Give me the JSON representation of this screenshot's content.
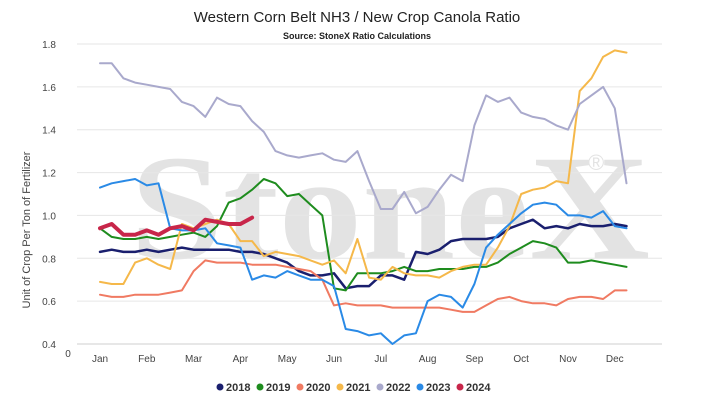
{
  "chart_data": {
    "type": "line",
    "title": "Western Corn Belt NH3 / New Crop Canola Ratio",
    "subtitle": "Source: StoneX Ratio Calculations",
    "ylabel": "Unit of Crop Per Ton of Fertilizer",
    "xlabel": "",
    "x_origin_label": "0",
    "categories": [
      "Jan",
      "Feb",
      "Mar",
      "Apr",
      "May",
      "Jun",
      "Jul",
      "Aug",
      "Sep",
      "Oct",
      "Nov",
      "Dec"
    ],
    "ylim": [
      0.4,
      1.8
    ],
    "yticks": [
      "0.4",
      "0.6",
      "0.8",
      "1.0",
      "1.2",
      "1.4",
      "1.6",
      "1.8"
    ],
    "grid": true,
    "legend_position": "bottom",
    "watermark": "StoneX",
    "series": [
      {
        "name": "2018",
        "color": "#1a1f6e",
        "width": 2.5,
        "x": [
          0,
          0.25,
          0.5,
          0.75,
          1,
          1.25,
          1.5,
          1.75,
          2,
          2.25,
          2.5,
          2.75,
          3,
          3.25,
          3.5,
          3.75,
          4,
          4.25,
          4.5,
          4.75,
          5,
          5.25,
          5.5,
          5.75,
          6,
          6.25,
          6.5,
          6.75,
          7,
          7.25,
          7.5,
          7.75,
          8,
          8.25,
          8.5,
          8.75,
          9,
          9.25,
          9.5,
          9.75,
          10,
          10.25,
          10.5,
          10.75,
          11,
          11.25
        ],
        "y": [
          0.83,
          0.84,
          0.83,
          0.83,
          0.84,
          0.83,
          0.84,
          0.85,
          0.84,
          0.84,
          0.84,
          0.84,
          0.83,
          0.83,
          0.82,
          0.8,
          0.78,
          0.74,
          0.72,
          0.72,
          0.73,
          0.66,
          0.67,
          0.67,
          0.72,
          0.72,
          0.7,
          0.83,
          0.82,
          0.84,
          0.88,
          0.89,
          0.89,
          0.89,
          0.9,
          0.94,
          0.96,
          0.98,
          0.94,
          0.95,
          0.94,
          0.96,
          0.95,
          0.95,
          0.96,
          0.95
        ]
      },
      {
        "name": "2019",
        "color": "#1e8c1e",
        "width": 2,
        "x": [
          0,
          0.25,
          0.5,
          0.75,
          1,
          1.25,
          1.5,
          1.75,
          2,
          2.25,
          2.5,
          2.75,
          3,
          3.25,
          3.5,
          3.75,
          4,
          4.25,
          4.5,
          4.75,
          5,
          5.25,
          5.5,
          5.75,
          6,
          6.25,
          6.5,
          6.75,
          7,
          7.25,
          7.5,
          7.75,
          8,
          8.25,
          8.5,
          8.75,
          9,
          9.25,
          9.5,
          9.75,
          10,
          10.25,
          10.5,
          10.75,
          11,
          11.25
        ],
        "y": [
          0.94,
          0.9,
          0.89,
          0.89,
          0.9,
          0.89,
          0.9,
          0.91,
          0.92,
          0.9,
          0.95,
          1.06,
          1.08,
          1.12,
          1.17,
          1.15,
          1.09,
          1.1,
          1.05,
          1.0,
          0.66,
          0.65,
          0.73,
          0.73,
          0.73,
          0.74,
          0.76,
          0.74,
          0.74,
          0.75,
          0.75,
          0.75,
          0.76,
          0.76,
          0.78,
          0.82,
          0.85,
          0.88,
          0.87,
          0.85,
          0.78,
          0.78,
          0.79,
          0.78,
          0.77,
          0.76
        ]
      },
      {
        "name": "2020",
        "color": "#f07a62",
        "width": 2,
        "x": [
          0,
          0.25,
          0.5,
          0.75,
          1,
          1.25,
          1.5,
          1.75,
          2,
          2.25,
          2.5,
          2.75,
          3,
          3.25,
          3.5,
          3.75,
          4,
          4.25,
          4.5,
          4.75,
          5,
          5.25,
          5.5,
          5.75,
          6,
          6.25,
          6.5,
          6.75,
          7,
          7.25,
          7.5,
          7.75,
          8,
          8.25,
          8.5,
          8.75,
          9,
          9.25,
          9.5,
          9.75,
          10,
          10.25,
          10.5,
          10.75,
          11,
          11.25
        ],
        "y": [
          0.63,
          0.62,
          0.62,
          0.63,
          0.63,
          0.63,
          0.64,
          0.65,
          0.74,
          0.79,
          0.78,
          0.78,
          0.78,
          0.77,
          0.77,
          0.77,
          0.76,
          0.75,
          0.74,
          0.7,
          0.58,
          0.59,
          0.58,
          0.58,
          0.58,
          0.57,
          0.57,
          0.57,
          0.57,
          0.57,
          0.56,
          0.55,
          0.55,
          0.58,
          0.61,
          0.62,
          0.6,
          0.59,
          0.59,
          0.58,
          0.61,
          0.62,
          0.62,
          0.61,
          0.65,
          0.65
        ]
      },
      {
        "name": "2021",
        "color": "#f5b84a",
        "width": 2,
        "x": [
          0,
          0.25,
          0.5,
          0.75,
          1,
          1.25,
          1.5,
          1.75,
          2,
          2.25,
          2.5,
          2.75,
          3,
          3.25,
          3.5,
          3.75,
          4,
          4.25,
          4.5,
          4.75,
          5,
          5.25,
          5.5,
          5.75,
          6,
          6.25,
          6.5,
          6.75,
          7,
          7.25,
          7.5,
          7.75,
          8,
          8.25,
          8.5,
          8.75,
          9,
          9.25,
          9.5,
          9.75,
          10,
          10.25,
          10.5,
          10.75,
          11,
          11.25
        ],
        "y": [
          0.69,
          0.68,
          0.68,
          0.78,
          0.8,
          0.77,
          0.75,
          0.96,
          0.94,
          0.96,
          0.98,
          0.96,
          0.88,
          0.88,
          0.81,
          0.83,
          0.82,
          0.81,
          0.79,
          0.77,
          0.79,
          0.73,
          0.89,
          0.71,
          0.7,
          0.76,
          0.73,
          0.72,
          0.72,
          0.71,
          0.74,
          0.76,
          0.77,
          0.77,
          0.85,
          0.95,
          1.1,
          1.12,
          1.13,
          1.16,
          1.15,
          1.58,
          1.64,
          1.74,
          1.77,
          1.76
        ]
      },
      {
        "name": "2022",
        "color": "#a9a9cc",
        "width": 2,
        "x": [
          0,
          0.25,
          0.5,
          0.75,
          1,
          1.25,
          1.5,
          1.75,
          2,
          2.25,
          2.5,
          2.75,
          3,
          3.25,
          3.5,
          3.75,
          4,
          4.25,
          4.5,
          4.75,
          5,
          5.25,
          5.5,
          5.75,
          6,
          6.25,
          6.5,
          6.75,
          7,
          7.25,
          7.5,
          7.75,
          8,
          8.25,
          8.5,
          8.75,
          9,
          9.25,
          9.5,
          9.75,
          10,
          10.25,
          10.5,
          10.75,
          11,
          11.25
        ],
        "y": [
          1.71,
          1.71,
          1.64,
          1.62,
          1.61,
          1.6,
          1.59,
          1.53,
          1.51,
          1.46,
          1.55,
          1.52,
          1.51,
          1.44,
          1.39,
          1.3,
          1.28,
          1.27,
          1.28,
          1.29,
          1.26,
          1.25,
          1.3,
          1.16,
          1.03,
          1.03,
          1.11,
          1.01,
          1.04,
          1.12,
          1.19,
          1.16,
          1.42,
          1.56,
          1.53,
          1.55,
          1.48,
          1.46,
          1.45,
          1.42,
          1.4,
          1.52,
          1.56,
          1.6,
          1.5,
          1.15
        ]
      },
      {
        "name": "2023",
        "color": "#2a8ae6",
        "width": 2,
        "x": [
          0,
          0.25,
          0.5,
          0.75,
          1,
          1.25,
          1.5,
          1.75,
          2,
          2.25,
          2.5,
          2.75,
          3,
          3.25,
          3.5,
          3.75,
          4,
          4.25,
          4.5,
          4.75,
          5,
          5.25,
          5.5,
          5.75,
          6,
          6.25,
          6.5,
          6.75,
          7,
          7.25,
          7.5,
          7.75,
          8,
          8.25,
          8.5,
          8.75,
          9,
          9.25,
          9.5,
          9.75,
          10,
          10.25,
          10.5,
          10.75,
          11,
          11.25
        ],
        "y": [
          1.13,
          1.15,
          1.16,
          1.17,
          1.14,
          1.15,
          0.94,
          0.93,
          0.93,
          0.94,
          0.87,
          0.86,
          0.85,
          0.7,
          0.72,
          0.71,
          0.74,
          0.72,
          0.7,
          0.7,
          0.67,
          0.47,
          0.46,
          0.44,
          0.45,
          0.4,
          0.44,
          0.45,
          0.6,
          0.63,
          0.62,
          0.57,
          0.68,
          0.85,
          0.91,
          0.96,
          1.01,
          1.05,
          1.06,
          1.05,
          1.0,
          1.0,
          0.99,
          1.02,
          0.95,
          0.94
        ]
      },
      {
        "name": "2024",
        "color": "#c8264a",
        "width": 4,
        "x": [
          0,
          0.25,
          0.5,
          0.75,
          1,
          1.25,
          1.5,
          1.75,
          2,
          2.25,
          2.5,
          2.75,
          3,
          3.25
        ],
        "y": [
          0.94,
          0.96,
          0.91,
          0.91,
          0.93,
          0.91,
          0.94,
          0.95,
          0.93,
          0.98,
          0.97,
          0.96,
          0.96,
          0.99
        ]
      }
    ]
  }
}
